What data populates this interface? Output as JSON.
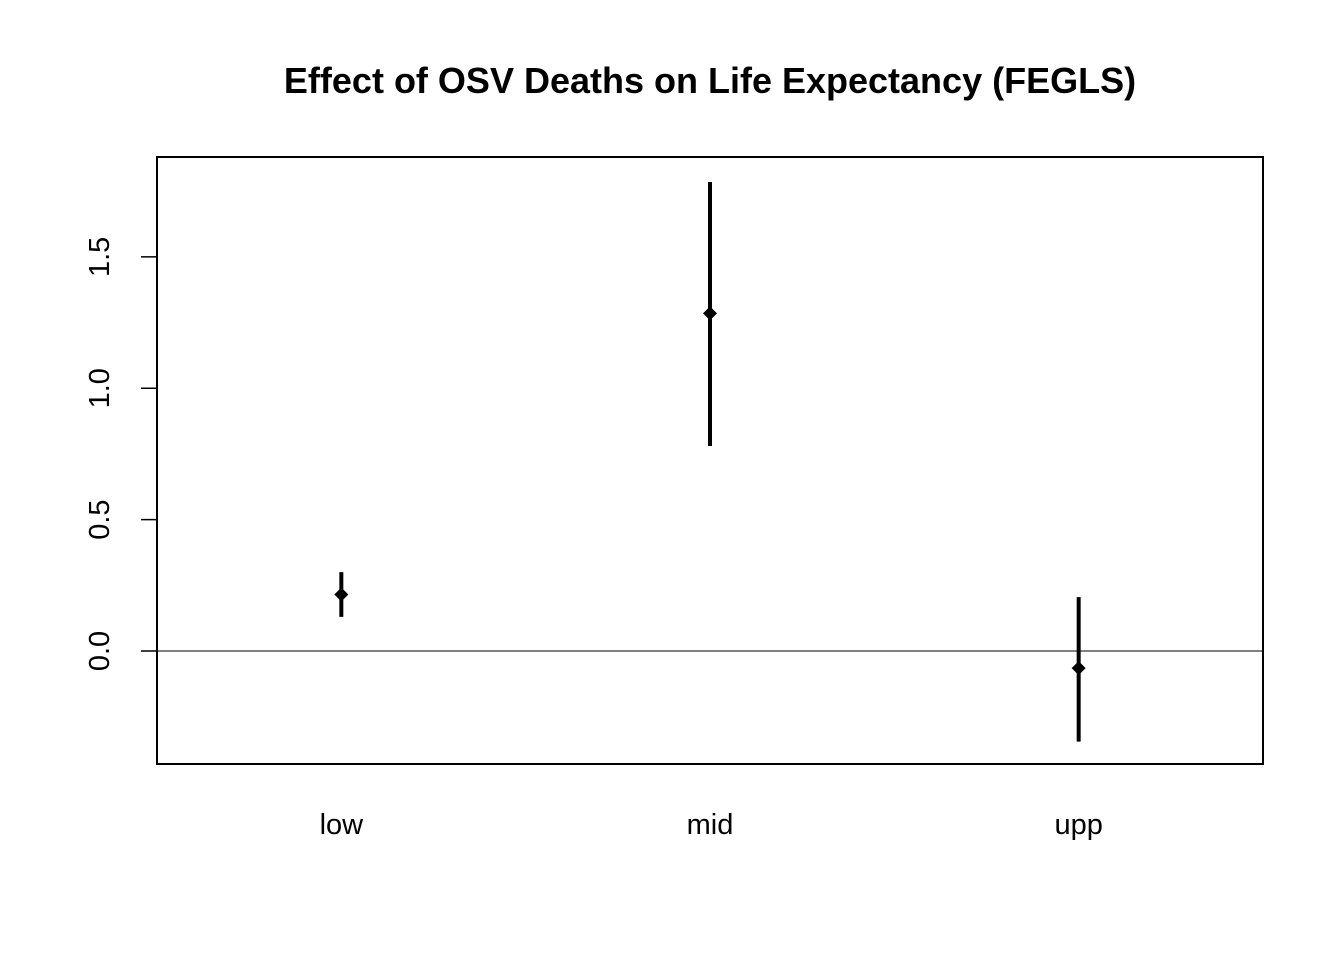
{
  "chart_data": {
    "type": "scatter",
    "title": "Effect of OSV Deaths on Life Expectancy (FEGLS)",
    "xlabel": "",
    "ylabel": "",
    "categories": [
      "low",
      "mid",
      "upp"
    ],
    "estimates": [
      0.215,
      1.285,
      -0.065
    ],
    "ci_lower": [
      0.13,
      0.78,
      -0.345
    ],
    "ci_upper": [
      0.3,
      1.785,
      0.205
    ],
    "ylim": [
      -0.43,
      1.88
    ],
    "yticks": [
      0.0,
      0.5,
      1.0,
      1.5
    ],
    "ytick_labels": [
      "0.0",
      "0.5",
      "1.0",
      "1.5"
    ],
    "reference_line": 0.0,
    "grid": false,
    "legend": "none",
    "colors": {
      "marker": "#000000",
      "interval": "#000000",
      "reference_line": "#000000",
      "axes": "#000000"
    },
    "marker_shape": "diamond-icon"
  }
}
